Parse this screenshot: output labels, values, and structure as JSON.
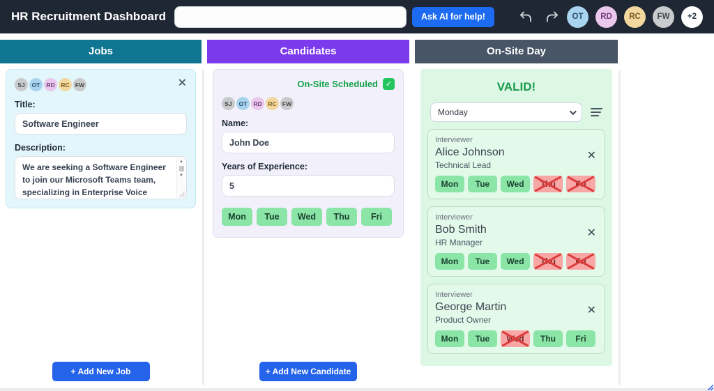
{
  "app": {
    "title": "HR Recruitment Dashboard",
    "search": {
      "value": "",
      "placeholder": ""
    },
    "ask_ai_label": "Ask AI for help!",
    "avatars": [
      {
        "initials": "OT",
        "bg": "#a9d4ef",
        "fg": "#29506e"
      },
      {
        "initials": "RD",
        "bg": "#eac7ed",
        "fg": "#72407a"
      },
      {
        "initials": "RC",
        "bg": "#f2d89e",
        "fg": "#7d5c24"
      },
      {
        "initials": "FW",
        "bg": "#c9cacb",
        "fg": "#44484c"
      },
      {
        "initials": "+2",
        "bg": "#ffffff",
        "fg": "#26323f"
      }
    ]
  },
  "avatar_colors": {
    "SJ": {
      "bg": "#c9cacb",
      "fg": "#44484c"
    },
    "OT": {
      "bg": "#a9d4ef",
      "fg": "#29506e"
    },
    "RD": {
      "bg": "#eac7ed",
      "fg": "#72407a"
    },
    "RC": {
      "bg": "#f2d89e",
      "fg": "#7d5c24"
    },
    "FW": {
      "bg": "#c9cacb",
      "fg": "#44484c"
    }
  },
  "jobs": {
    "header": "Jobs",
    "card": {
      "avatars": [
        "SJ",
        "OT",
        "RD",
        "RC",
        "FW"
      ],
      "title_label": "Title:",
      "title_value": "Software Engineer",
      "description_label": "Description:",
      "description_value": "We are seeking a Software Engineer to join our Microsoft Teams team, specializing in Enterprise Voice features. As an individual"
    },
    "add_label": "+ Add New Job"
  },
  "candidates": {
    "header": "Candidates",
    "card": {
      "scheduled_label": "On-Site Scheduled",
      "scheduled_checked": true,
      "avatars": [
        "SJ",
        "OT",
        "RD",
        "RC",
        "FW"
      ],
      "name_label": "Name:",
      "name_value": "John Doe",
      "experience_label": "Years of Experience:",
      "experience_value": "5",
      "days": [
        "Mon",
        "Tue",
        "Wed",
        "Thu",
        "Fri"
      ]
    },
    "add_label": "+ Add New Candidate"
  },
  "onsite": {
    "header": "On-Site Day",
    "status": "VALID!",
    "day_select": {
      "value": "Monday"
    },
    "interviewer_label": "Interviewer",
    "interviewers": [
      {
        "name": "Alice Johnson",
        "role": "Technical Lead",
        "days": [
          {
            "day": "Mon",
            "available": true
          },
          {
            "day": "Tue",
            "available": true
          },
          {
            "day": "Wed",
            "available": true
          },
          {
            "day": "Thu",
            "available": false
          },
          {
            "day": "Fri",
            "available": false
          }
        ]
      },
      {
        "name": "Bob Smith",
        "role": "HR Manager",
        "days": [
          {
            "day": "Mon",
            "available": true
          },
          {
            "day": "Tue",
            "available": true
          },
          {
            "day": "Wed",
            "available": true
          },
          {
            "day": "Thu",
            "available": false
          },
          {
            "day": "Fri",
            "available": false
          }
        ]
      },
      {
        "name": "George Martin",
        "role": "Product Owner",
        "days": [
          {
            "day": "Mon",
            "available": true
          },
          {
            "day": "Tue",
            "available": true
          },
          {
            "day": "Wed",
            "available": false
          },
          {
            "day": "Thu",
            "available": true
          },
          {
            "day": "Fri",
            "available": true
          }
        ]
      }
    ]
  },
  "colors": {
    "topbar_bg": "#1f2634",
    "jobs_header_bg": "#0f7590",
    "candidates_header_bg": "#7c3aed",
    "onsite_header_bg": "#475566",
    "accent_blue": "#2563eb",
    "ask_ai_blue": "#1c6bf2",
    "valid_green": "#189a4a",
    "chip_green_bg": "#8ae5a7",
    "chip_red_bg": "#f8a6a6"
  }
}
